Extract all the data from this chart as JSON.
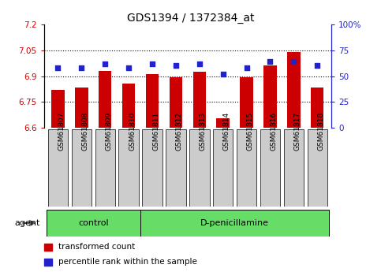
{
  "title": "GDS1394 / 1372384_at",
  "samples": [
    "GSM61807",
    "GSM61808",
    "GSM61809",
    "GSM61810",
    "GSM61811",
    "GSM61812",
    "GSM61813",
    "GSM61814",
    "GSM61815",
    "GSM61816",
    "GSM61817",
    "GSM61818"
  ],
  "bar_values": [
    6.82,
    6.835,
    6.93,
    6.855,
    6.91,
    6.895,
    6.925,
    6.655,
    6.895,
    6.96,
    7.04,
    6.835
  ],
  "percentile_values": [
    58,
    58,
    62,
    58,
    62,
    60,
    62,
    52,
    58,
    64,
    64,
    60
  ],
  "y_min": 6.6,
  "y_max": 7.2,
  "y_ticks": [
    6.6,
    6.75,
    6.9,
    7.05,
    7.2
  ],
  "y2_ticks": [
    0,
    25,
    50,
    75,
    100
  ],
  "bar_color": "#cc0000",
  "dot_color": "#2222cc",
  "control_n": 4,
  "control_label": "control",
  "treatment_label": "D-penicillamine",
  "agent_label": "agent",
  "legend_bar": "transformed count",
  "legend_dot": "percentile rank within the sample",
  "green_bg": "#66dd66",
  "tick_bg": "#cccccc",
  "grid_color": "#000000"
}
